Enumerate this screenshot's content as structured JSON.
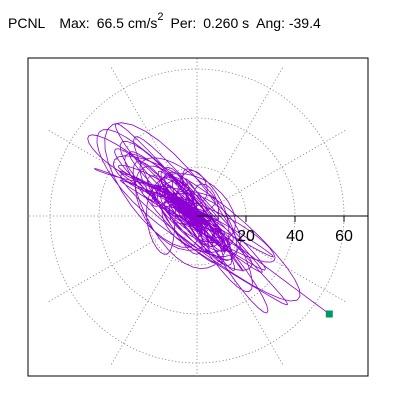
{
  "header": {
    "station": "PCNL",
    "max_label": "Max:",
    "max_value": "66.5",
    "max_unit": "cm/s",
    "max_unit_exp": "2",
    "per_label": "Per:",
    "per_value": "0.260",
    "per_unit": "s",
    "ang_label": "Ang:",
    "ang_value": "-39.4"
  },
  "chart_data": {
    "type": "polar-orbit",
    "radial_ticks": [
      {
        "value": 20,
        "label": "20"
      },
      {
        "value": 40,
        "label": "40"
      },
      {
        "value": 60,
        "label": "60"
      }
    ],
    "rmax": 70,
    "grid": true,
    "angular_grid_step_deg": 30,
    "trace_color": "#8b00d0",
    "end_marker_color": "#009966",
    "peak": {
      "magnitude": 66.5,
      "angle_deg": -39.4
    },
    "end_point": {
      "x": 54,
      "y": -40
    }
  },
  "colors": {
    "frame": "#000000",
    "grid": "#808080",
    "axis": "#000000"
  }
}
